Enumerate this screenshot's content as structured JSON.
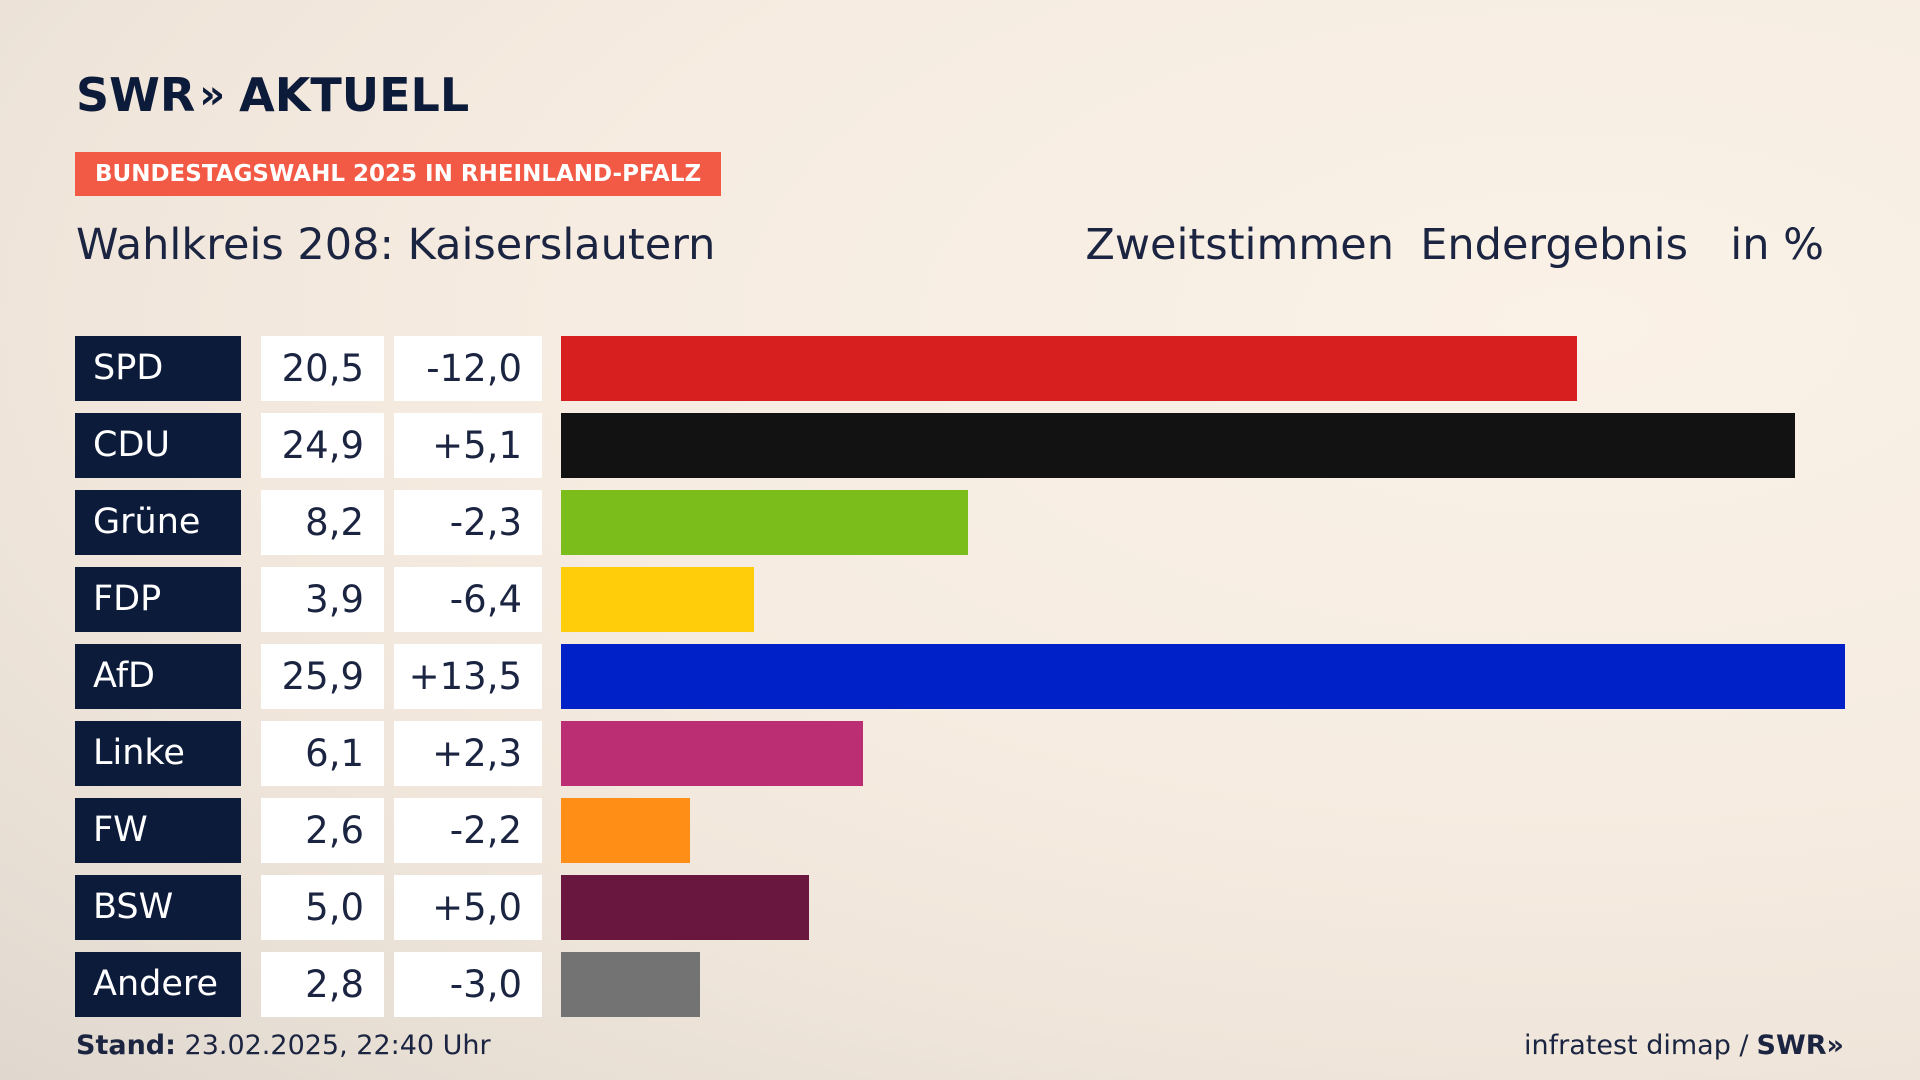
{
  "brand": {
    "logo_left": "SWR",
    "logo_arrows": "»",
    "logo_right": "AKTUELL"
  },
  "tag": "BUNDESTAGSWAHL 2025 IN RHEINLAND-PFALZ",
  "subtitle": "Wahlkreis 208: Kaiserslautern",
  "headers": {
    "votes": "Zweitstimmen",
    "status": "Endergebnis",
    "unit": "in %"
  },
  "footer": {
    "stand_label": "Stand:",
    "stand_value": "23.02.2025, 22:40 Uhr",
    "source": "infratest dimap /",
    "source_brand": "SWR»"
  },
  "chart_data": {
    "type": "bar",
    "orientation": "horizontal",
    "categories": [
      "SPD",
      "CDU",
      "Grüne",
      "FDP",
      "AfD",
      "Linke",
      "FW",
      "BSW",
      "Andere"
    ],
    "values": [
      20.5,
      24.9,
      8.2,
      3.9,
      25.9,
      6.1,
      2.6,
      5.0,
      2.8
    ],
    "value_labels": [
      "20,5",
      "24,9",
      "8,2",
      "3,9",
      "25,9",
      "6,1",
      "2,6",
      "5,0",
      "2,8"
    ],
    "diff_labels": [
      "-12,0",
      "+5,1",
      "-2,3",
      "-6,4",
      "+13,5",
      "+2,3",
      "-2,2",
      "+5,0",
      "-3,0"
    ],
    "colors": [
      "#d71f1f",
      "#121212",
      "#7bbd1a",
      "#ffcd0a",
      "#0021c8",
      "#bb2e73",
      "#ff8e17",
      "#69173f",
      "#737373"
    ],
    "xlim": [
      0,
      25.9
    ]
  }
}
